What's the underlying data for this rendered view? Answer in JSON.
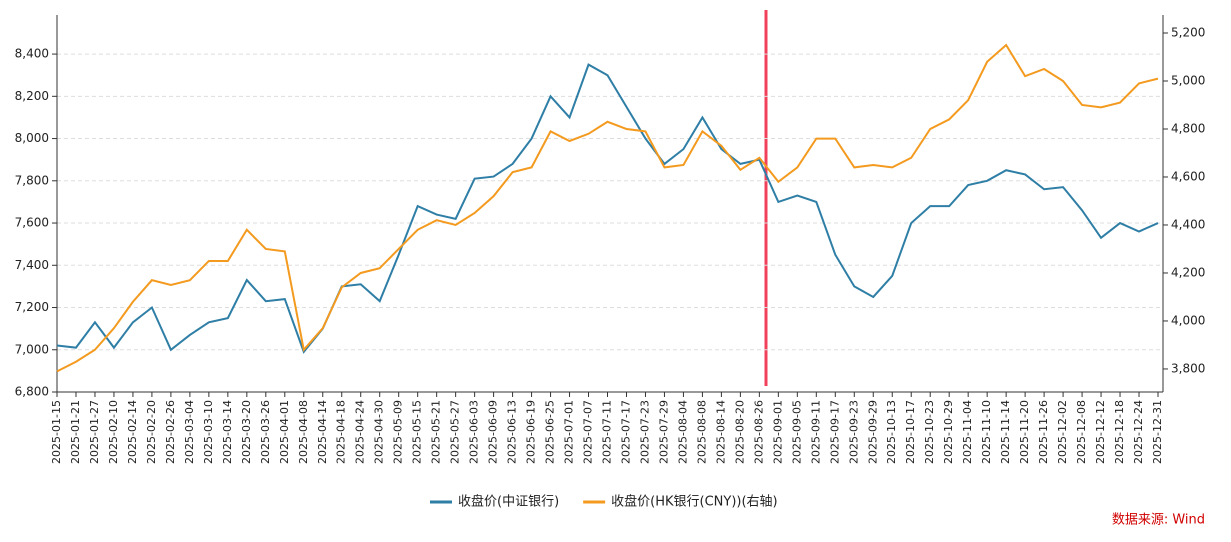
{
  "chart_data": {
    "type": "line",
    "categories": [
      "2025-01-15",
      "2025-01-21",
      "2025-01-27",
      "2025-02-10",
      "2025-02-14",
      "2025-02-20",
      "2025-02-26",
      "2025-03-04",
      "2025-03-10",
      "2025-03-14",
      "2025-03-20",
      "2025-03-26",
      "2025-04-01",
      "2025-04-08",
      "2025-04-14",
      "2025-04-18",
      "2025-04-24",
      "2025-04-30",
      "2025-05-09",
      "2025-05-15",
      "2025-05-21",
      "2025-05-27",
      "2025-06-03",
      "2025-06-09",
      "2025-06-13",
      "2025-06-19",
      "2025-06-25",
      "2025-07-01",
      "2025-07-07",
      "2025-07-11",
      "2025-07-17",
      "2025-07-23",
      "2025-07-29",
      "2025-08-04",
      "2025-08-08",
      "2025-08-14",
      "2025-08-20",
      "2025-08-26",
      "2025-09-01",
      "2025-09-05",
      "2025-09-11",
      "2025-09-17",
      "2025-09-23",
      "2025-09-29",
      "2025-10-13",
      "2025-10-17",
      "2025-10-23",
      "2025-10-29",
      "2025-11-04",
      "2025-11-10",
      "2025-11-14",
      "2025-11-20",
      "2025-11-26",
      "2025-12-02",
      "2025-12-08",
      "2025-12-12",
      "2025-12-18",
      "2025-12-24",
      "2025-12-31"
    ],
    "series": [
      {
        "name": "收盘价(中证银行)",
        "color": "#2e7ea6",
        "values": [
          7020,
          7010,
          7130,
          7010,
          7130,
          7200,
          7000,
          7070,
          7130,
          7150,
          7330,
          7230,
          7240,
          6990,
          7100,
          7300,
          7310,
          7230,
          7450,
          7680,
          7640,
          7620,
          7810,
          7820,
          7880,
          8000,
          8200,
          8100,
          8350,
          8300,
          8150,
          8000,
          7880,
          7950,
          8100,
          7950,
          7880,
          7900,
          7700,
          7730,
          7700,
          7450,
          7300,
          7250,
          7350,
          7600,
          7680,
          7680,
          7780,
          7800,
          7850,
          7830,
          7760,
          7770,
          7660,
          7530,
          7600,
          7560,
          7600
        ]
      },
      {
        "name": "收盘价(HK银行(CNY))(右轴)",
        "color": "#f39a1f",
        "axis": "y2",
        "values": [
          3790,
          3830,
          3880,
          3970,
          4080,
          4170,
          4150,
          4170,
          4250,
          4250,
          4380,
          4300,
          4290,
          3880,
          3970,
          4140,
          4200,
          4220,
          4300,
          4380,
          4420,
          4400,
          4450,
          4520,
          4620,
          4640,
          4790,
          4750,
          4780,
          4830,
          4800,
          4790,
          4640,
          4650,
          4790,
          4730,
          4630,
          4680,
          4580,
          4640,
          4760,
          4760,
          4640,
          4650,
          4640,
          4680,
          4800,
          4840,
          4920,
          5080,
          5150,
          5020,
          5050,
          5000,
          4900,
          4890,
          4910,
          4990,
          5010
        ]
      }
    ],
    "ylim": [
      6800,
      8585
    ],
    "yticks": [
      {
        "value": 6800,
        "label": "6,800"
      },
      {
        "value": 7000,
        "label": "7,000"
      },
      {
        "value": 7200,
        "label": "7,200"
      },
      {
        "value": 7400,
        "label": "7,400"
      },
      {
        "value": 7600,
        "label": "7,600"
      },
      {
        "value": 7800,
        "label": "7,800"
      },
      {
        "value": 8000,
        "label": "8,000"
      },
      {
        "value": 8200,
        "label": "8,200"
      },
      {
        "value": 8400,
        "label": "8,400"
      }
    ],
    "y2lim": [
      3704,
      5275
    ],
    "y2ticks": [
      {
        "value": 3800,
        "label": "3,800"
      },
      {
        "value": 4000,
        "label": "4,000"
      },
      {
        "value": 4200,
        "label": "4,200"
      },
      {
        "value": 4400,
        "label": "4,400"
      },
      {
        "value": 4600,
        "label": "4,600"
      },
      {
        "value": 4800,
        "label": "4,800"
      },
      {
        "value": 5000,
        "label": "5,000"
      },
      {
        "value": 5200,
        "label": "5,200"
      }
    ],
    "grid": true,
    "legend": "bottom",
    "source": "数据来源: Wind"
  }
}
